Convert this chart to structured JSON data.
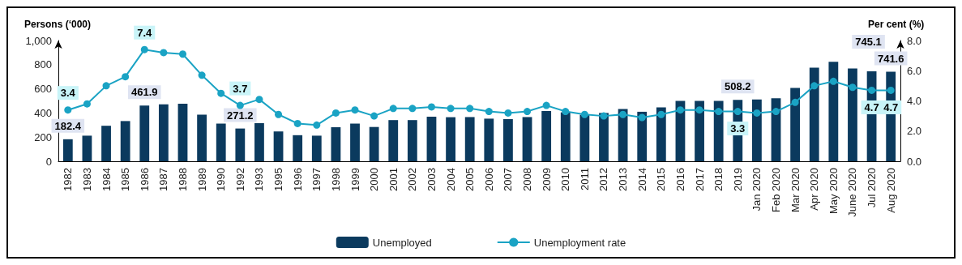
{
  "chart_data": {
    "type": "bar",
    "ylabel": "Persons (‘000)",
    "y2label": "Per cent (%)",
    "categories": [
      "1982",
      "1983",
      "1984",
      "1985",
      "1986",
      "1987",
      "1988",
      "1989",
      "1990",
      "1992",
      "1993",
      "1995",
      "1996",
      "1997",
      "1998",
      "1999",
      "2000",
      "2001",
      "2002",
      "2003",
      "2004",
      "2005",
      "2006",
      "2007",
      "2008",
      "2009",
      "2010",
      "2011",
      "2012",
      "2013",
      "2014",
      "2015",
      "2016",
      "2017",
      "2018",
      "2019",
      "Jan 2020",
      "Feb 2020",
      "Mar 2020",
      "Apr 2020",
      "May 2020",
      "June 2020",
      "Jul 2020",
      "Aug 2020"
    ],
    "series": [
      {
        "name": "Unemployed",
        "color": "#0b3a5e",
        "values": [
          182.4,
          212,
          294,
          333,
          461.9,
          471,
          476,
          386,
          312,
          271.2,
          316,
          247,
          216,
          212,
          282,
          312,
          284,
          341,
          341,
          369,
          365,
          366,
          353,
          349,
          366,
          416,
          405,
          385,
          400,
          433,
          410,
          447,
          500,
          500,
          500,
          508.2,
          512,
          522,
          608,
          776,
          824,
          769,
          745.1,
          741.6
        ],
        "value_labels": [
          "182.4",
          null,
          null,
          null,
          "461.9",
          null,
          null,
          null,
          null,
          "271.2",
          null,
          null,
          null,
          null,
          null,
          null,
          null,
          null,
          null,
          null,
          null,
          null,
          null,
          null,
          null,
          null,
          null,
          null,
          null,
          null,
          null,
          null,
          null,
          null,
          null,
          "508.2",
          null,
          null,
          null,
          null,
          null,
          null,
          "745.1",
          "741.6"
        ]
      },
      {
        "name": "Unemployment rate",
        "type": "line",
        "axis": "y2",
        "color": "#1aa3c4",
        "values": [
          3.4,
          3.8,
          5.0,
          5.6,
          7.4,
          7.2,
          7.1,
          5.7,
          4.5,
          3.7,
          4.1,
          3.1,
          2.5,
          2.4,
          3.2,
          3.4,
          3.0,
          3.5,
          3.5,
          3.6,
          3.5,
          3.5,
          3.3,
          3.2,
          3.3,
          3.7,
          3.3,
          3.1,
          3.0,
          3.1,
          2.9,
          3.1,
          3.4,
          3.4,
          3.3,
          3.3,
          3.2,
          3.3,
          3.9,
          5.0,
          5.3,
          4.9,
          4.7,
          4.7
        ],
        "value_labels": [
          "3.4",
          null,
          null,
          null,
          "7.4",
          null,
          null,
          null,
          null,
          "3.7",
          null,
          null,
          null,
          null,
          null,
          null,
          null,
          null,
          null,
          null,
          null,
          null,
          null,
          null,
          null,
          null,
          null,
          null,
          null,
          null,
          null,
          null,
          null,
          null,
          null,
          "3.3",
          null,
          null,
          null,
          null,
          null,
          null,
          "4.7",
          "4.7"
        ]
      }
    ],
    "ylim": [
      0,
      1000
    ],
    "yticks": [
      0,
      200,
      400,
      600,
      800,
      {
        "value": 1000,
        "label": "1,000"
      }
    ],
    "y2lim": [
      0,
      8
    ],
    "y2ticks": [
      {
        "value": 0,
        "label": "0.0"
      },
      {
        "value": 2,
        "label": "2.0"
      },
      {
        "value": 4,
        "label": "4.0"
      },
      {
        "value": 6,
        "label": "6.0"
      },
      {
        "value": 8,
        "label": "8.0"
      }
    ],
    "grid": false,
    "legend": "bottom",
    "marker": "circle"
  }
}
